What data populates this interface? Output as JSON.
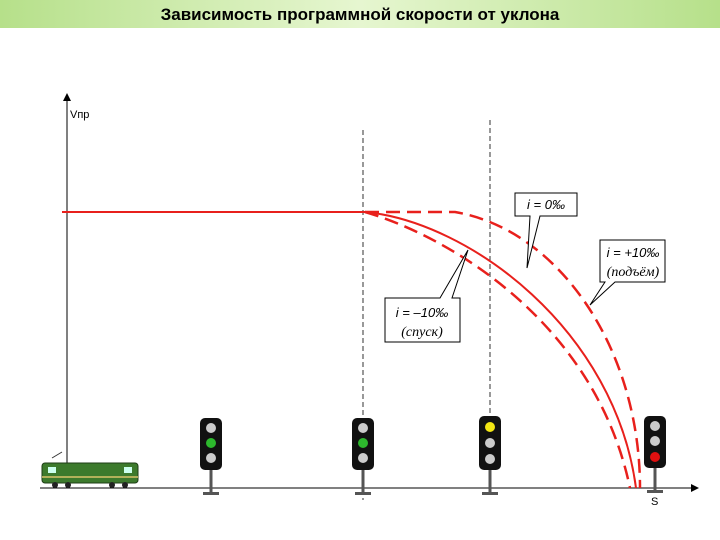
{
  "header": {
    "title": "Зависимость программной скорости от уклона"
  },
  "axes": {
    "y_label": "Vпр",
    "x_label": "S"
  },
  "callouts": [
    {
      "label": "i = 0‰"
    },
    {
      "label": "i = +10‰",
      "note": "(подъём)"
    },
    {
      "label": "i = –10‰",
      "note": "(спуск)"
    }
  ]
}
